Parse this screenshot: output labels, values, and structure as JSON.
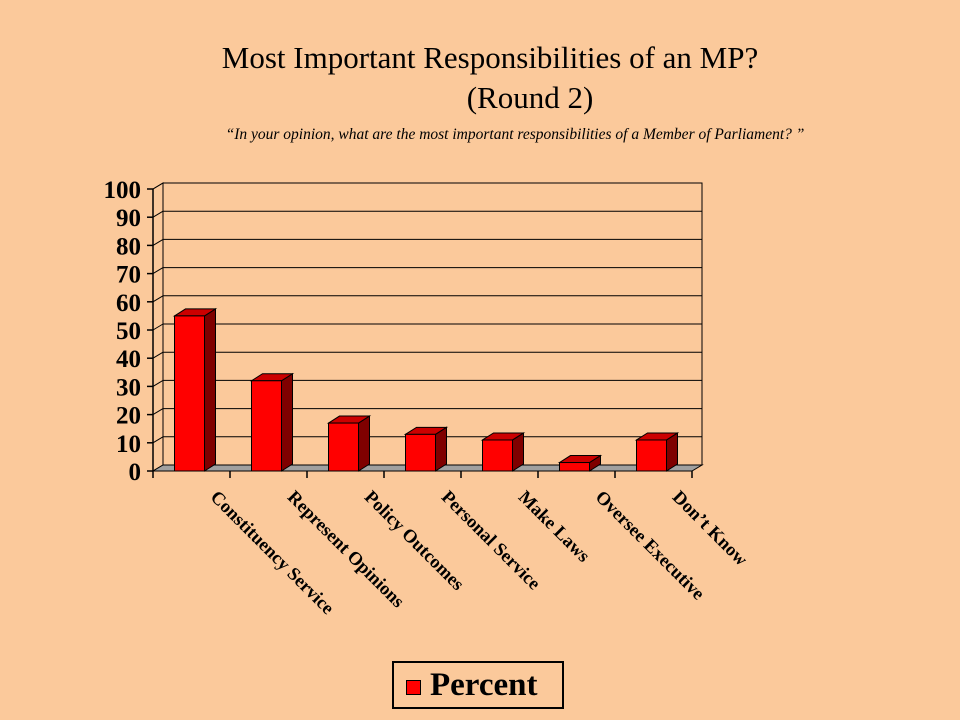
{
  "chart_data": {
    "type": "bar",
    "title": "Most Important Responsibilities of an MP?",
    "title_line2": "(Round 2)",
    "subtitle": "“In your opinion, what are the most important responsibilities of a Member of Parliament? ”",
    "categories": [
      "Constituency Service",
      "Represent Opinions",
      "Policy Outcomes",
      "Personal Service",
      "Make Laws",
      "Oversee Executive",
      "Don’t Know"
    ],
    "series": [
      {
        "name": "Percent",
        "values": [
          55,
          32,
          17,
          13,
          11,
          3,
          11
        ]
      }
    ],
    "ylim": [
      0,
      100
    ],
    "yticks": [
      "0",
      "10",
      "20",
      "30",
      "40",
      "50",
      "60",
      "70",
      "80",
      "90",
      "100"
    ],
    "grid": true,
    "legend": "bottom",
    "colors": {
      "bar_front": "#FF0000",
      "bar_side": "#7F0000",
      "bar_top": "#CC0000",
      "floor": "#A0A0A0",
      "background": "#FBC99B"
    }
  }
}
